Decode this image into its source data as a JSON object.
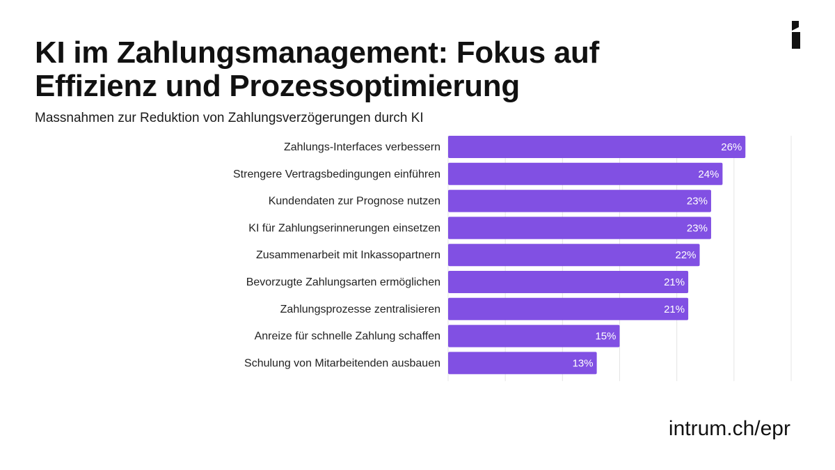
{
  "header": {
    "title_line1": "KI im Zahlungsmanagement: Fokus auf",
    "title_line2": "Effizienz und Prozessoptimierung",
    "subtitle": "Massnahmen zur Reduktion von Zahlungsverzögerungen durch KI"
  },
  "footer": {
    "url": "intrum.ch/epr"
  },
  "logo": {
    "icon": "intrum-logo-icon"
  },
  "colors": {
    "bar": "#8150e3",
    "grid": "#e4e4e4",
    "text": "#111111"
  },
  "chart_data": {
    "type": "bar",
    "orientation": "horizontal",
    "categories": [
      "Zahlungs-Interfaces verbessern",
      "Strengere Vertragsbedingungen einführen",
      "Kundendaten zur Prognose nutzen",
      "KI für Zahlungserinnerungen einsetzen",
      "Zusammenarbeit mit Inkassopartnern",
      "Bevorzugte Zahlungsarten ermöglichen",
      "Zahlungsprozesse zentralisieren",
      "Anreize für schnelle Zahlung schaffen",
      "Schulung von Mitarbeitenden ausbauen"
    ],
    "values": [
      26,
      24,
      23,
      23,
      22,
      21,
      21,
      15,
      13
    ],
    "value_labels": [
      "26%",
      "24%",
      "23%",
      "23%",
      "22%",
      "21%",
      "21%",
      "15%",
      "13%"
    ],
    "unit": "%",
    "xlim": [
      0,
      30
    ],
    "grid": true,
    "title": "Massnahmen zur Reduktion von Zahlungsverzögerungen durch KI",
    "xlabel": "",
    "ylabel": ""
  }
}
